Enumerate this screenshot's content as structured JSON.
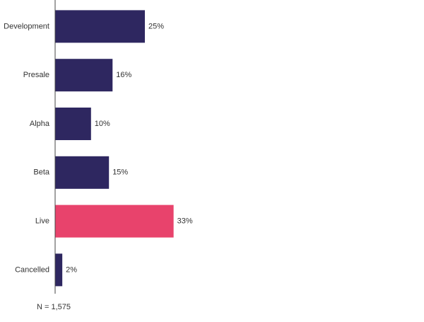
{
  "chart_data": {
    "type": "bar",
    "orientation": "horizontal",
    "categories": [
      "Development",
      "Presale",
      "Alpha",
      "Beta",
      "Live",
      "Cancelled"
    ],
    "values": [
      25,
      16,
      10,
      15,
      33,
      2
    ],
    "value_labels": [
      "25%",
      "16%",
      "10%",
      "15%",
      "33%",
      "2%"
    ],
    "colors": [
      "#2e2760",
      "#2e2760",
      "#2e2760",
      "#2e2760",
      "#e8436c",
      "#2e2760"
    ],
    "note": "N = 1,575"
  }
}
